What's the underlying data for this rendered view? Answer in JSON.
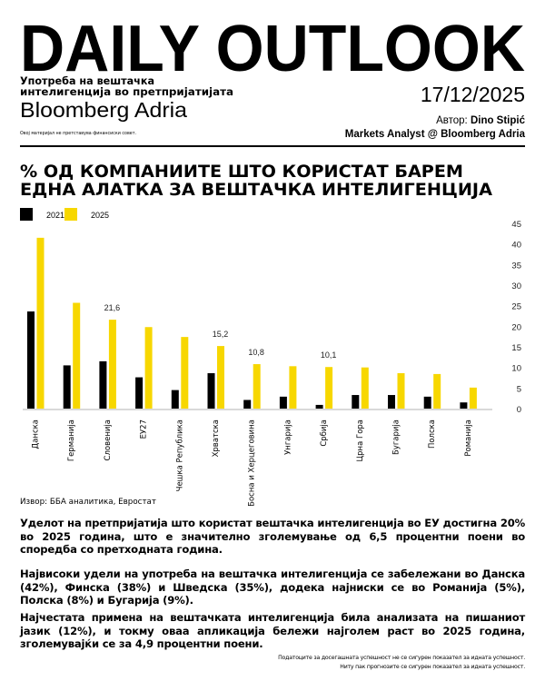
{
  "header": {
    "title": "DAILY OUTLOOK",
    "subtitle_line1": "Употреба на вештачка",
    "subtitle_line2": "интелигенција во претпријатијата",
    "brand": "Bloomberg Adria",
    "disclaimer": "Овој материјал не претставува финансиски совет.",
    "date": "17/12/2025",
    "author_label": "Автор: ",
    "author_name": "Dino Stipić",
    "author_role": "Markets Analyst @ Bloomberg Adria"
  },
  "colors": {
    "series2021": "#000000",
    "series2025": "#f7d700",
    "axis": "#d9d9d9"
  },
  "chart_data": {
    "type": "bar",
    "title_line1": "% ОД КОМПАНИИТЕ ШТО КОРИСТАТ БАРЕМ",
    "title_line2": "ЕДНА АЛАТКА ЗА ВЕШТАЧКА ИНТЕЛИГЕНЦИЈА",
    "categories": [
      "Данска",
      "Германија",
      "Словенија",
      "ЕУ27",
      "Чешка Република",
      "Хрватска",
      "Босна и Херцеговина",
      "Унгарија",
      "Србија",
      "Црна Гора",
      "Бугарија",
      "Полска",
      "Романија"
    ],
    "series": [
      {
        "name": "2021",
        "values": [
          23.6,
          10.5,
          11.5,
          7.6,
          4.5,
          8.6,
          2.1,
          2.9,
          0.9,
          3.3,
          3.3,
          2.9,
          1.5
        ]
      },
      {
        "name": "2025",
        "values": [
          41.5,
          25.7,
          21.6,
          19.8,
          17.4,
          15.2,
          10.8,
          10.3,
          10.1,
          10.0,
          8.6,
          8.4,
          5.1
        ]
      }
    ],
    "data_labels": [
      {
        "category_index": 2,
        "text": "21,6"
      },
      {
        "category_index": 5,
        "text": "15,2"
      },
      {
        "category_index": 6,
        "text": "10,8"
      },
      {
        "category_index": 8,
        "text": "10,1"
      }
    ],
    "yticks": [
      "0",
      "5",
      "10",
      "15",
      "20",
      "25",
      "30",
      "35",
      "40",
      "45"
    ],
    "ylim": [
      0,
      45
    ],
    "xlabel": "",
    "ylabel": "",
    "y_axis_side": "right",
    "legend_position": "top-left",
    "source": "Извор: ББА аналитика, Евростат"
  },
  "body": {
    "p1": "Уделот на претпријатија што користат вештачка интелигенција во ЕУ достигна 20% во 2025 година, што е значително зголемување од 6,5 процентни поени во споредба со претходната година.",
    "p2": "Највисоки удели на употреба на вештачка интелигенција се забележани во Данска (42%), Финска (38%) и Шведска (35%), додека најниски се во Романија (5%), Полска (8%) и Бугарија (9%).",
    "p3": "Најчестата примена на вештачката интелигенција била анализата на пишаниот јазик (12%), и токму оваа апликација бележи најголем раст во 2025 година, зголемувајќи се за 4,9 процентни поени."
  },
  "footer": {
    "line1": "Податоците за досегашната успешност не се сигурен показател за идната успешност.",
    "line2": "Ниту пак прогнозите се сигурен показател за идната успешност."
  }
}
